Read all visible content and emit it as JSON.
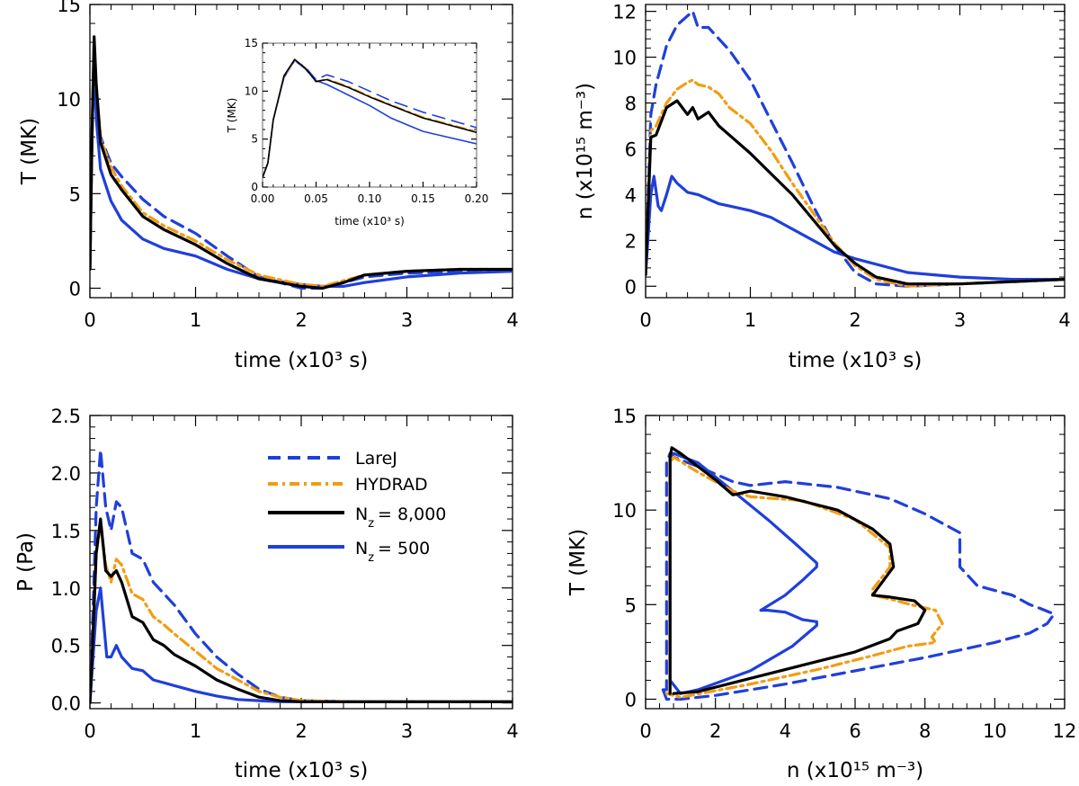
{
  "colors": {
    "larej": "#1f3fdb",
    "hydrad": "#f39c12",
    "nz8000": "#000000",
    "nz500": "#1f3fdb"
  },
  "legend": {
    "entries": [
      {
        "key": "larej",
        "style": "dashed",
        "label": "LareJ"
      },
      {
        "key": "hydrad",
        "style": "dashdot",
        "label": "HYDRAD"
      },
      {
        "key": "nz8000",
        "style": "solid",
        "label_main": "N",
        "label_sub": "z",
        "label_rest": "= 8,000"
      },
      {
        "key": "nz500",
        "style": "solid",
        "label_main": "N",
        "label_sub": "z",
        "label_rest": "= 500"
      }
    ]
  },
  "chart_data": [
    {
      "panel": "top-left",
      "type": "line",
      "xlabel": "time (x10³ s)",
      "ylabel": "T (MK)",
      "xlim": [
        0,
        4
      ],
      "ylim": [
        -0.5,
        15
      ],
      "xticks": [
        "0",
        "1",
        "2",
        "3",
        "4"
      ],
      "yticks": [
        "0",
        "5",
        "10",
        "15"
      ],
      "series": [
        {
          "key": "larej",
          "x": [
            0,
            0.02,
            0.04,
            0.06,
            0.1,
            0.2,
            0.3,
            0.5,
            0.7,
            1.0,
            1.3,
            1.6,
            2.0,
            2.2,
            2.4,
            2.6,
            3.0,
            3.5,
            4.0
          ],
          "y": [
            1,
            8,
            12.5,
            10.5,
            8.0,
            6.6,
            5.9,
            4.7,
            3.8,
            2.9,
            1.7,
            0.6,
            0.0,
            0.0,
            0.3,
            0.6,
            0.8,
            0.9,
            1.0
          ]
        },
        {
          "key": "hydrad",
          "x": [
            0,
            0.02,
            0.04,
            0.06,
            0.1,
            0.2,
            0.3,
            0.5,
            0.7,
            1.0,
            1.3,
            1.6,
            2.0,
            2.2,
            2.4,
            2.6,
            3.0,
            3.5,
            4.0
          ],
          "y": [
            1,
            8,
            12.8,
            10.8,
            7.9,
            6.4,
            5.4,
            4.0,
            3.3,
            2.5,
            1.5,
            0.7,
            0.2,
            0.1,
            0.4,
            0.7,
            0.9,
            1.0,
            1.0
          ]
        },
        {
          "key": "nz8000",
          "x": [
            0,
            0.02,
            0.04,
            0.06,
            0.1,
            0.2,
            0.3,
            0.5,
            0.7,
            1.0,
            1.3,
            1.6,
            2.0,
            2.2,
            2.4,
            2.6,
            3.0,
            3.5,
            4.0
          ],
          "y": [
            1,
            8,
            13.3,
            10.8,
            7.7,
            6.0,
            5.2,
            3.8,
            3.1,
            2.3,
            1.3,
            0.5,
            0.1,
            0.0,
            0.3,
            0.7,
            0.9,
            1.0,
            1.0
          ]
        },
        {
          "key": "nz500",
          "x": [
            0,
            0.02,
            0.04,
            0.06,
            0.1,
            0.2,
            0.3,
            0.5,
            0.7,
            1.0,
            1.3,
            1.6,
            2.0,
            2.2,
            2.4,
            2.6,
            3.0,
            3.5,
            4.0
          ],
          "y": [
            1,
            8,
            13.0,
            9.0,
            6.3,
            4.6,
            3.6,
            2.6,
            2.1,
            1.7,
            1.0,
            0.5,
            0.2,
            0.1,
            0.1,
            0.3,
            0.6,
            0.8,
            0.9
          ]
        }
      ],
      "inset": {
        "xlabel": "time (x10³ s)",
        "ylabel": "T (MK)",
        "xlim": [
          0,
          0.2
        ],
        "ylim": [
          0,
          15
        ],
        "xticks": [
          "0.00",
          "0.05",
          "0.10",
          "0.15",
          "0.20"
        ],
        "yticks": [
          "0",
          "5",
          "10",
          "15"
        ],
        "series": [
          {
            "key": "larej",
            "x": [
              0,
              0.005,
              0.01,
              0.02,
              0.03,
              0.04,
              0.05,
              0.06,
              0.08,
              0.1,
              0.12,
              0.15,
              0.2
            ],
            "y": [
              1,
              2.5,
              7.0,
              11.5,
              13.2,
              12.5,
              11.2,
              11.7,
              11.0,
              10.0,
              9.0,
              7.8,
              6.2
            ]
          },
          {
            "key": "hydrad",
            "x": [
              0,
              0.005,
              0.01,
              0.02,
              0.03,
              0.04,
              0.05,
              0.06,
              0.08,
              0.1,
              0.12,
              0.15,
              0.2
            ],
            "y": [
              1,
              2.5,
              7.0,
              11.5,
              13.2,
              12.4,
              11.0,
              11.3,
              10.5,
              9.5,
              8.6,
              7.3,
              5.8
            ]
          },
          {
            "key": "nz8000",
            "x": [
              0,
              0.005,
              0.01,
              0.02,
              0.03,
              0.04,
              0.05,
              0.06,
              0.08,
              0.1,
              0.12,
              0.15,
              0.2
            ],
            "y": [
              1,
              2.5,
              7.0,
              11.6,
              13.3,
              12.4,
              11.0,
              11.2,
              10.4,
              9.4,
              8.5,
              7.2,
              5.7
            ]
          },
          {
            "key": "nz500",
            "x": [
              0,
              0.005,
              0.01,
              0.02,
              0.03,
              0.04,
              0.05,
              0.06,
              0.08,
              0.1,
              0.12,
              0.15,
              0.2
            ],
            "y": [
              1,
              2.5,
              7.0,
              11.4,
              13.2,
              12.3,
              11.1,
              10.7,
              9.6,
              8.5,
              7.2,
              5.8,
              4.5
            ]
          }
        ]
      }
    },
    {
      "panel": "top-right",
      "type": "line",
      "xlabel": "time (x10³ s)",
      "ylabel": "n (x10¹⁵ m⁻³)",
      "xlim": [
        0,
        4
      ],
      "ylim": [
        -0.5,
        12.3
      ],
      "xticks": [
        "0",
        "1",
        "2",
        "3",
        "4"
      ],
      "yticks": [
        "0",
        "2",
        "4",
        "6",
        "8",
        "10",
        "12"
      ],
      "series": [
        {
          "key": "larej",
          "x": [
            0,
            0.05,
            0.1,
            0.2,
            0.3,
            0.4,
            0.45,
            0.5,
            0.6,
            0.7,
            0.8,
            1.0,
            1.2,
            1.4,
            1.6,
            1.8,
            2.0,
            2.2,
            2.5,
            3.0,
            3.5,
            4.0
          ],
          "y": [
            0.5,
            7.5,
            8.8,
            10.5,
            11.4,
            11.8,
            12.0,
            11.3,
            11.3,
            10.8,
            10.3,
            9.0,
            7.2,
            5.4,
            3.5,
            1.8,
            0.6,
            0.1,
            0.0,
            0.1,
            0.2,
            0.3
          ]
        },
        {
          "key": "hydrad",
          "x": [
            0,
            0.05,
            0.1,
            0.2,
            0.3,
            0.4,
            0.45,
            0.5,
            0.6,
            0.7,
            0.8,
            1.0,
            1.2,
            1.4,
            1.6,
            1.8,
            2.0,
            2.2,
            2.5,
            3.0,
            3.5,
            4.0
          ],
          "y": [
            0.5,
            6.8,
            7.0,
            8.0,
            8.6,
            8.9,
            9.0,
            8.8,
            8.7,
            8.4,
            7.8,
            7.1,
            5.9,
            4.5,
            3.2,
            1.9,
            0.9,
            0.3,
            0.0,
            0.1,
            0.2,
            0.3
          ]
        },
        {
          "key": "nz8000",
          "x": [
            0,
            0.05,
            0.1,
            0.2,
            0.3,
            0.4,
            0.45,
            0.5,
            0.6,
            0.7,
            0.8,
            1.0,
            1.2,
            1.4,
            1.6,
            1.8,
            2.0,
            2.2,
            2.5,
            3.0,
            3.5,
            4.0
          ],
          "y": [
            0.5,
            6.5,
            6.6,
            7.8,
            8.1,
            7.5,
            7.8,
            7.3,
            7.6,
            7.0,
            6.6,
            5.8,
            4.9,
            4.0,
            2.9,
            1.8,
            1.0,
            0.4,
            0.1,
            0.1,
            0.2,
            0.3
          ]
        },
        {
          "key": "nz500",
          "x": [
            0,
            0.05,
            0.08,
            0.12,
            0.15,
            0.2,
            0.25,
            0.3,
            0.4,
            0.5,
            0.6,
            0.7,
            0.8,
            1.0,
            1.2,
            1.4,
            1.6,
            1.8,
            2.0,
            2.5,
            3.0,
            3.5,
            4.0
          ],
          "y": [
            0.5,
            4.0,
            4.8,
            3.5,
            3.3,
            4.0,
            4.8,
            4.5,
            4.1,
            4.0,
            3.8,
            3.6,
            3.5,
            3.3,
            3.0,
            2.5,
            2.0,
            1.5,
            1.2,
            0.6,
            0.4,
            0.3,
            0.3
          ]
        }
      ]
    },
    {
      "panel": "bottom-left",
      "type": "line",
      "xlabel": "time (x10³ s)",
      "ylabel": "P (Pa)",
      "xlim": [
        0,
        4
      ],
      "ylim": [
        -0.05,
        2.5
      ],
      "xticks": [
        "0",
        "1",
        "2",
        "3",
        "4"
      ],
      "yticks": [
        "0.0",
        "0.5",
        "1.0",
        "1.5",
        "2.0",
        "2.5"
      ],
      "legend_location": "upper right",
      "series": [
        {
          "key": "larej",
          "x": [
            0,
            0.03,
            0.06,
            0.1,
            0.15,
            0.2,
            0.25,
            0.3,
            0.4,
            0.5,
            0.6,
            0.7,
            0.8,
            1.0,
            1.2,
            1.4,
            1.6,
            1.8,
            2.0,
            2.5,
            3.0,
            3.5,
            4.0
          ],
          "y": [
            0,
            0.8,
            1.7,
            2.2,
            1.7,
            1.5,
            1.75,
            1.7,
            1.3,
            1.25,
            1.05,
            0.95,
            0.85,
            0.6,
            0.4,
            0.25,
            0.12,
            0.05,
            0.02,
            0.01,
            0.01,
            0.01,
            0.01
          ]
        },
        {
          "key": "hydrad",
          "x": [
            0,
            0.03,
            0.06,
            0.1,
            0.15,
            0.2,
            0.25,
            0.3,
            0.4,
            0.5,
            0.6,
            0.7,
            0.8,
            1.0,
            1.2,
            1.4,
            1.6,
            1.8,
            2.0,
            2.5,
            3.0,
            3.5,
            4.0
          ],
          "y": [
            0,
            0.6,
            1.3,
            1.55,
            1.2,
            1.05,
            1.25,
            1.2,
            0.95,
            0.9,
            0.75,
            0.68,
            0.6,
            0.45,
            0.3,
            0.2,
            0.1,
            0.05,
            0.02,
            0.01,
            0.01,
            0.01,
            0.01
          ]
        },
        {
          "key": "nz8000",
          "x": [
            0,
            0.03,
            0.06,
            0.1,
            0.15,
            0.2,
            0.25,
            0.3,
            0.4,
            0.5,
            0.6,
            0.7,
            0.8,
            1.0,
            1.2,
            1.4,
            1.6,
            1.8,
            2.0,
            2.5,
            3.0,
            3.5,
            4.0
          ],
          "y": [
            0,
            0.6,
            1.3,
            1.6,
            1.15,
            1.1,
            1.15,
            1.05,
            0.75,
            0.7,
            0.55,
            0.5,
            0.42,
            0.32,
            0.2,
            0.12,
            0.05,
            0.02,
            0.01,
            0.01,
            0.01,
            0.01,
            0.01
          ]
        },
        {
          "key": "nz500",
          "x": [
            0,
            0.03,
            0.06,
            0.1,
            0.13,
            0.16,
            0.2,
            0.25,
            0.3,
            0.4,
            0.5,
            0.6,
            0.8,
            1.0,
            1.2,
            1.4,
            1.6,
            1.8,
            2.0,
            2.5,
            3.0,
            3.5,
            4.0
          ],
          "y": [
            0,
            0.4,
            0.8,
            1.0,
            0.7,
            0.4,
            0.4,
            0.5,
            0.4,
            0.3,
            0.28,
            0.2,
            0.15,
            0.1,
            0.06,
            0.03,
            0.02,
            0.01,
            0.01,
            0.01,
            0.01,
            0.01,
            0.01
          ]
        }
      ]
    },
    {
      "panel": "bottom-right",
      "type": "line",
      "xlabel": "n (x10¹⁵ m⁻³)",
      "ylabel": "T (MK)",
      "xlim": [
        0,
        12
      ],
      "ylim": [
        -0.5,
        15
      ],
      "xticks": [
        "0",
        "2",
        "4",
        "6",
        "8",
        "10",
        "12"
      ],
      "yticks": [
        "0",
        "5",
        "10",
        "15"
      ],
      "series": [
        {
          "key": "larej",
          "x": [
            0.5,
            0.6,
            0.6,
            0.7,
            0.8,
            1.5,
            2.5,
            3.0,
            4.0,
            5.5,
            7.0,
            8.0,
            9.0,
            9.0,
            9.5,
            10.5,
            11.0,
            11.3,
            11.7,
            11.5,
            11.0,
            10.0,
            8.0,
            6.0,
            4.0,
            2.0,
            1.0,
            0.6,
            0.5
          ],
          "y": [
            0.5,
            0.5,
            12.5,
            13.0,
            12.8,
            12.3,
            11.5,
            11.3,
            11.5,
            11.2,
            10.6,
            9.8,
            8.8,
            7.0,
            6.0,
            5.5,
            5.0,
            4.8,
            4.5,
            4.0,
            3.5,
            3.0,
            2.2,
            1.5,
            0.8,
            0.2,
            0.0,
            0.0,
            0.5
          ]
        },
        {
          "key": "hydrad",
          "x": [
            0.6,
            0.7,
            0.7,
            0.8,
            1.5,
            2.5,
            3.0,
            4.5,
            6.0,
            7.0,
            7.0,
            6.5,
            6.5,
            7.0,
            7.6,
            8.3,
            8.5,
            8.2,
            8.3,
            7.5,
            6.5,
            5.0,
            3.0,
            1.0,
            0.6
          ],
          "y": [
            0.3,
            0.3,
            12.5,
            12.8,
            12.0,
            11.0,
            10.7,
            10.5,
            9.5,
            8.0,
            7.0,
            5.8,
            5.5,
            5.3,
            5.0,
            4.7,
            4.0,
            3.3,
            3.0,
            2.8,
            2.3,
            1.6,
            0.8,
            0.1,
            0.3
          ]
        },
        {
          "key": "nz8000",
          "x": [
            0.7,
            0.7,
            0.75,
            1.0,
            2.0,
            2.5,
            3.0,
            4.0,
            5.5,
            6.5,
            7.0,
            7.1,
            6.7,
            6.5,
            7.0,
            7.7,
            8.0,
            7.8,
            7.2,
            7.0,
            6.0,
            4.5,
            3.0,
            1.5,
            0.8
          ],
          "y": [
            0.3,
            12.8,
            13.3,
            13.0,
            11.6,
            10.8,
            11.0,
            10.7,
            10.0,
            9.0,
            8.2,
            7.0,
            6.0,
            5.5,
            5.4,
            5.2,
            4.7,
            4.0,
            3.6,
            3.2,
            2.5,
            1.8,
            1.1,
            0.4,
            0.3
          ]
        },
        {
          "key": "nz500",
          "x": [
            0.7,
            0.7,
            0.8,
            1.5,
            2.5,
            3.5,
            4.3,
            4.9,
            4.9,
            4.5,
            4.0,
            3.3,
            3.5,
            4.0,
            4.5,
            4.9,
            4.9,
            4.2,
            3.0,
            1.5,
            1.0,
            0.7
          ],
          "y": [
            1.0,
            12.8,
            13.0,
            12.5,
            11.0,
            9.5,
            8.2,
            7.2,
            7.0,
            6.3,
            5.5,
            4.7,
            4.7,
            4.6,
            4.2,
            4.1,
            3.9,
            2.8,
            1.5,
            0.5,
            0.3,
            1.0
          ]
        }
      ]
    }
  ]
}
